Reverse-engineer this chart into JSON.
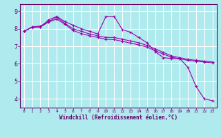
{
  "xlabel": "Windchill (Refroidissement éolien,°C)",
  "bg_color": "#aeeaee",
  "line_color": "#9900aa",
  "grid_color": "#ffffff",
  "axis_color": "#660066",
  "x_ticks": [
    0,
    1,
    2,
    3,
    4,
    5,
    6,
    7,
    8,
    9,
    10,
    11,
    12,
    13,
    14,
    15,
    16,
    17,
    18,
    19,
    20,
    21,
    22,
    23
  ],
  "y_ticks": [
    4,
    5,
    6,
    7,
    8,
    9
  ],
  "ylim": [
    3.5,
    9.4
  ],
  "xlim": [
    -0.5,
    23.5
  ],
  "series": [
    [
      7.85,
      8.1,
      8.1,
      8.5,
      8.7,
      8.4,
      8.2,
      8.0,
      7.85,
      7.7,
      8.7,
      8.7,
      7.95,
      7.8,
      7.5,
      7.2,
      6.7,
      6.35,
      6.3,
      6.3,
      5.8,
      4.7,
      4.0,
      3.9
    ],
    [
      7.85,
      8.1,
      8.15,
      8.4,
      8.65,
      8.3,
      8.0,
      7.85,
      7.7,
      7.6,
      7.5,
      7.5,
      7.4,
      7.3,
      7.2,
      7.05,
      6.85,
      6.65,
      6.45,
      6.35,
      6.25,
      6.2,
      6.15,
      6.1
    ],
    [
      7.85,
      8.08,
      8.1,
      8.38,
      8.55,
      8.25,
      7.9,
      7.72,
      7.6,
      7.5,
      7.4,
      7.38,
      7.28,
      7.18,
      7.08,
      6.95,
      6.75,
      6.55,
      6.38,
      6.28,
      6.2,
      6.15,
      6.1,
      6.05
    ]
  ],
  "tick_fontsize": 5.5,
  "xlabel_fontsize": 5.5
}
